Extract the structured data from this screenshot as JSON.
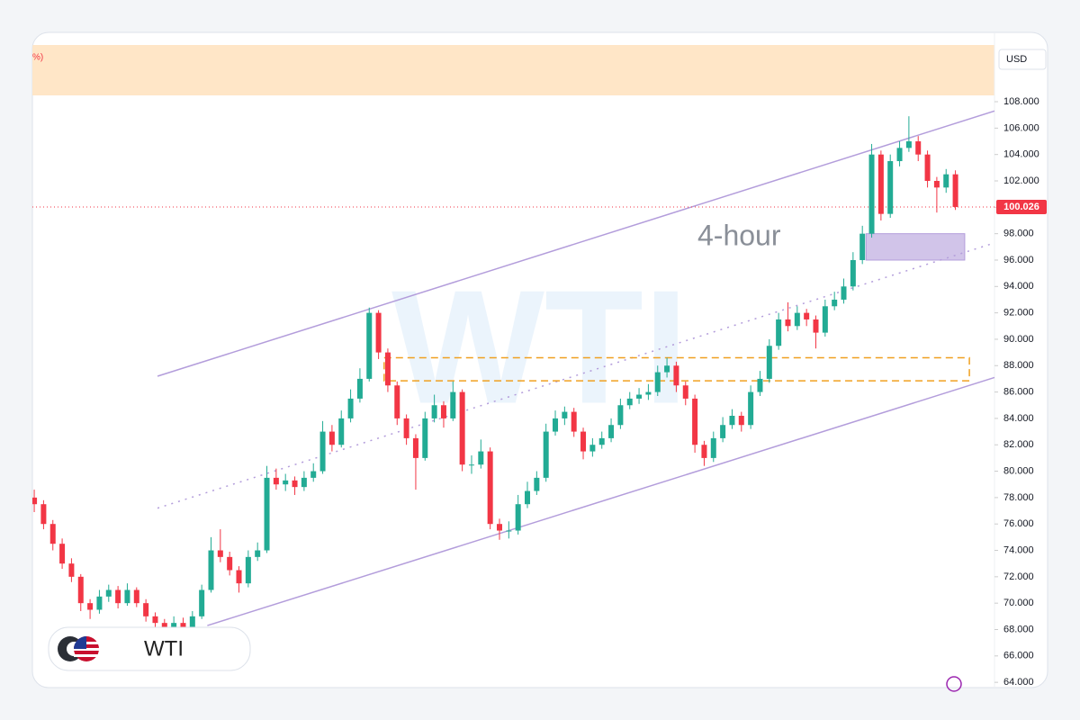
{
  "chart_data": {
    "type": "candlestick",
    "symbol": "WTI",
    "watermark": "WTI",
    "timeframe": "4-hour",
    "currency": "USD",
    "top_note": "%)",
    "last_price": 100.026,
    "up_color": "#22ab94",
    "down_color": "#f23645",
    "xlim": [
      -0.2,
      103.2
    ],
    "ylim": [
      63.6,
      112.3
    ],
    "yticks": [
      {
        "value": 64,
        "label": "64.000"
      },
      {
        "value": 66,
        "label": "66.000"
      },
      {
        "value": 68,
        "label": "68.000"
      },
      {
        "value": 70,
        "label": "70.000"
      },
      {
        "value": 72,
        "label": "72.000"
      },
      {
        "value": 74,
        "label": "74.000"
      },
      {
        "value": 76,
        "label": "76.000"
      },
      {
        "value": 78,
        "label": "78.000"
      },
      {
        "value": 80,
        "label": "80.000"
      },
      {
        "value": 82,
        "label": "82.000"
      },
      {
        "value": 84,
        "label": "84.000"
      },
      {
        "value": 86,
        "label": "86.000"
      },
      {
        "value": 88,
        "label": "88.000"
      },
      {
        "value": 90,
        "label": "90.000"
      },
      {
        "value": 92,
        "label": "92.000"
      },
      {
        "value": 94,
        "label": "94.000"
      },
      {
        "value": 96,
        "label": "96.000"
      },
      {
        "value": 98,
        "label": "98.000"
      },
      {
        "value": 100,
        "label": "100.000"
      },
      {
        "value": 102,
        "label": "102.000"
      },
      {
        "value": 104,
        "label": "104.000"
      },
      {
        "value": 106,
        "label": "106.000"
      },
      {
        "value": 108,
        "label": "108.000"
      }
    ],
    "channel": {
      "color": "#b39ddb",
      "upper": {
        "x": [
          13.25,
          103.2
        ],
        "y": [
          87.2,
          107.3
        ]
      },
      "middle": {
        "x": [
          13.25,
          103.2
        ],
        "y": [
          77.2,
          97.3
        ]
      },
      "lower": {
        "x": [
          18.6,
          103.2
        ],
        "y": [
          68.3,
          87.1
        ]
      }
    },
    "zones": [
      {
        "x": [
          89.4,
          100.0
        ],
        "y": [
          96.0,
          98.0
        ],
        "color": "#b39ddb",
        "style": "filled"
      },
      {
        "x": [
          37.6,
          100.5
        ],
        "y": [
          86.85,
          88.6
        ],
        "color": "#f0a020",
        "style": "dashed"
      }
    ],
    "candles": [
      [
        78,
        78.6,
        76.9,
        77.5
      ],
      [
        77.5,
        77.8,
        75.6,
        76
      ],
      [
        76,
        76.3,
        74,
        74.5
      ],
      [
        74.5,
        74.9,
        72.6,
        73
      ],
      [
        73,
        73.4,
        71.6,
        72
      ],
      [
        72,
        72.2,
        69.4,
        70
      ],
      [
        70,
        70.3,
        68.8,
        69.5
      ],
      [
        69.5,
        71,
        69.2,
        70.5
      ],
      [
        70.5,
        71.4,
        70.1,
        71
      ],
      [
        71,
        71.3,
        69.6,
        70
      ],
      [
        70,
        71.5,
        69.8,
        71
      ],
      [
        71,
        71.2,
        69.7,
        70
      ],
      [
        70,
        70.3,
        68.6,
        69
      ],
      [
        69,
        69.3,
        68.1,
        68.5
      ],
      [
        68.5,
        68.8,
        67.6,
        68
      ],
      [
        68,
        69,
        67.8,
        68.5
      ],
      [
        68.5,
        68.9,
        67.9,
        68.2
      ],
      [
        68.2,
        69.4,
        68,
        69
      ],
      [
        69,
        71.4,
        68.8,
        71
      ],
      [
        71,
        75,
        70.8,
        74
      ],
      [
        74,
        75.6,
        73.1,
        73.5
      ],
      [
        73.5,
        73.9,
        72.1,
        72.5
      ],
      [
        72.5,
        72.8,
        70.8,
        71.5
      ],
      [
        71.5,
        74,
        71.2,
        73.5
      ],
      [
        73.5,
        74.6,
        73.2,
        74
      ],
      [
        74,
        80.4,
        73.8,
        79.5
      ],
      [
        79.5,
        80.2,
        78.6,
        79
      ],
      [
        79,
        79.8,
        78.5,
        79.3
      ],
      [
        79.3,
        79.6,
        78.2,
        78.8
      ],
      [
        78.8,
        80,
        78.5,
        79.5
      ],
      [
        79.5,
        80.6,
        79.2,
        80
      ],
      [
        80,
        83.8,
        79.8,
        83
      ],
      [
        83,
        83.5,
        81.5,
        82
      ],
      [
        82,
        84.6,
        81.8,
        84
      ],
      [
        84,
        86.2,
        83.7,
        85.5
      ],
      [
        85.5,
        87.8,
        85.2,
        87
      ],
      [
        87,
        92.4,
        86.8,
        92
      ],
      [
        92,
        92.2,
        88.5,
        89
      ],
      [
        89,
        89.3,
        86,
        86.5
      ],
      [
        86.5,
        86.8,
        83.5,
        84
      ],
      [
        84,
        84.3,
        82,
        82.5
      ],
      [
        82.5,
        82.8,
        78.6,
        81
      ],
      [
        81,
        84.5,
        80.8,
        84
      ],
      [
        84,
        85.8,
        83.7,
        85
      ],
      [
        85,
        85.3,
        83.3,
        84
      ],
      [
        84,
        86.8,
        83.8,
        86
      ],
      [
        86,
        86.2,
        80,
        80.5
      ],
      [
        80.5,
        81.2,
        79.8,
        80.5
      ],
      [
        80.5,
        82.4,
        80.2,
        81.5
      ],
      [
        81.5,
        81.8,
        75.6,
        76
      ],
      [
        76,
        76.4,
        74.8,
        75.5
      ],
      [
        75.5,
        76.2,
        74.9,
        75.5
      ],
      [
        75.5,
        78.2,
        75.2,
        77.5
      ],
      [
        77.5,
        79.2,
        77.2,
        78.5
      ],
      [
        78.5,
        80,
        78.2,
        79.5
      ],
      [
        79.5,
        83.6,
        79.2,
        83
      ],
      [
        83,
        84.6,
        82.7,
        84
      ],
      [
        84,
        84.9,
        83.5,
        84.5
      ],
      [
        84.5,
        84.8,
        82.6,
        83
      ],
      [
        83,
        83.3,
        80.9,
        81.5
      ],
      [
        81.5,
        82.5,
        81.1,
        82
      ],
      [
        82,
        83,
        81.7,
        82.5
      ],
      [
        82.5,
        84,
        82.2,
        83.5
      ],
      [
        83.5,
        85.5,
        83.2,
        85
      ],
      [
        85,
        86,
        84.7,
        85.5
      ],
      [
        85.5,
        86.3,
        85.1,
        85.8
      ],
      [
        85.8,
        86.6,
        85.4,
        86
      ],
      [
        86,
        88,
        85.7,
        87.5
      ],
      [
        87.5,
        88.6,
        87.1,
        88
      ],
      [
        88,
        88.3,
        86,
        86.5
      ],
      [
        86.5,
        86.8,
        85,
        85.5
      ],
      [
        85.5,
        85.8,
        81.4,
        82
      ],
      [
        82,
        82.3,
        80.4,
        81
      ],
      [
        81,
        83,
        80.7,
        82.5
      ],
      [
        82.5,
        84.1,
        82.2,
        83.5
      ],
      [
        83.5,
        84.7,
        83.2,
        84.2
      ],
      [
        84.2,
        84.5,
        83,
        83.5
      ],
      [
        83.5,
        86.5,
        83.2,
        86
      ],
      [
        86,
        87.6,
        85.7,
        87
      ],
      [
        87,
        90,
        86.7,
        89.5
      ],
      [
        89.5,
        92,
        89.2,
        91.5
      ],
      [
        91.5,
        92.8,
        90.6,
        91
      ],
      [
        91,
        92.5,
        90.7,
        92
      ],
      [
        92,
        92.3,
        91,
        91.5
      ],
      [
        91.5,
        91.8,
        89.3,
        90.5
      ],
      [
        90.5,
        93,
        90.2,
        92.5
      ],
      [
        92.5,
        93.6,
        92.2,
        93
      ],
      [
        93,
        94.6,
        92.7,
        94
      ],
      [
        94,
        96.6,
        93.7,
        96
      ],
      [
        96,
        98.6,
        95.7,
        98
      ],
      [
        98,
        104.8,
        97.7,
        104
      ],
      [
        104,
        104.3,
        99,
        99.5
      ],
      [
        99.5,
        104,
        99.2,
        103.5
      ],
      [
        103.5,
        105,
        103.1,
        104.5
      ],
      [
        104.5,
        106.9,
        104.2,
        105
      ],
      [
        105,
        105.4,
        103.5,
        104
      ],
      [
        104,
        104.3,
        101.5,
        102
      ],
      [
        102,
        102.3,
        99.6,
        101.5
      ],
      [
        101.5,
        102.9,
        101.1,
        102.5
      ],
      [
        102.5,
        102.8,
        99.8,
        100.026
      ]
    ]
  }
}
